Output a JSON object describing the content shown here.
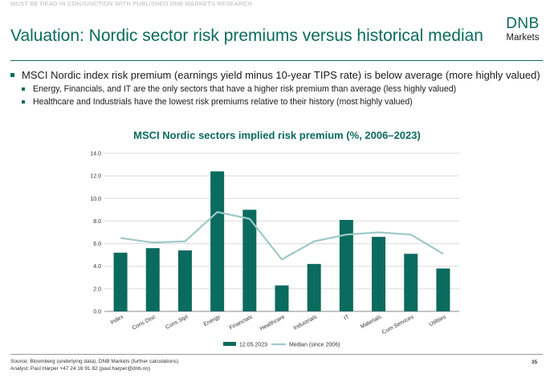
{
  "header": {
    "disclaimer": "MUST BE READ IN CONJUNCTION WITH PUBLISHED DNB MARKETS RESEARCH",
    "title": "Valuation: Nordic sector risk premiums versus historical median",
    "logo_mark": "DNB",
    "logo_word": "Markets"
  },
  "bullets": {
    "main": "MSCI Nordic index risk premium (earnings yield minus 10-year TIPS rate) is below average (more highly valued)",
    "sub": [
      "Energy, Financials, and IT are the only sectors that have a higher risk premium than average (less highly valued)",
      "Healthcare and Industrials have the lowest risk premiums relative to their history (most highly valued)"
    ]
  },
  "chart_data": {
    "type": "bar",
    "title": "MSCI Nordic sectors implied risk premium (%, 2006–2023)",
    "categories": [
      "Index",
      "Cons Disc",
      "Cons Stpl",
      "Energy",
      "Financials",
      "Healthcare",
      "Industrials",
      "IT",
      "Materials",
      "Com Services",
      "Utilities"
    ],
    "series": [
      {
        "name": "12.05.2023",
        "type": "bar",
        "color": "#0a6b5e",
        "values": [
          5.2,
          5.6,
          5.4,
          12.4,
          9.0,
          2.3,
          4.2,
          8.1,
          6.6,
          5.1,
          3.8
        ]
      },
      {
        "name": "Median (since 2006)",
        "type": "line",
        "color": "#9ec9c7",
        "values": [
          6.5,
          6.1,
          6.2,
          8.8,
          8.2,
          4.6,
          6.2,
          6.8,
          7.0,
          6.8,
          5.1
        ]
      }
    ],
    "ylim": [
      0,
      14
    ],
    "yticks": [
      0,
      2,
      4,
      6,
      8,
      10,
      12,
      14
    ],
    "ytick_labels": [
      "0.0",
      "2.0",
      "4.0",
      "6.0",
      "8.0",
      "10.0",
      "12.0",
      "14.0"
    ],
    "grid": true,
    "legend_position": "bottom-center"
  },
  "footer": {
    "source": "Source: Bloomberg (underlying data), DNB Markets (further calculations)",
    "analyst": "Analyst: Paul Harper +47 24 16 91 82 (paul.harper@dnb.no)",
    "page": "35"
  }
}
